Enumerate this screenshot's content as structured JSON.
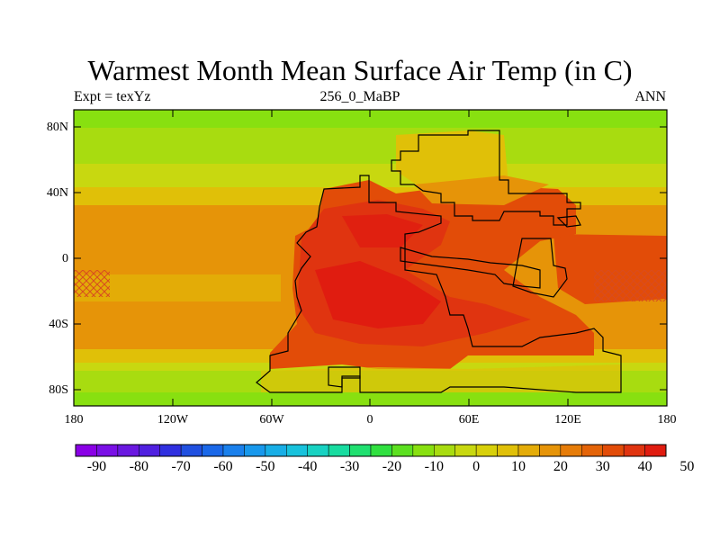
{
  "title": "Warmest Month Mean Surface Air Temp (in C)",
  "subtitle_left": "Expt = texYz",
  "subtitle_center": "256_0_MaBP",
  "subtitle_right": "ANN",
  "y_tick_labels": [
    "80N",
    "40N",
    "0",
    "40S",
    "80S"
  ],
  "x_tick_labels": [
    "180",
    "120W",
    "60W",
    "0",
    "60E",
    "120E",
    "180"
  ],
  "colorbar": {
    "labels": [
      "-90",
      "-80",
      "-70",
      "-60",
      "-50",
      "-40",
      "-30",
      "-20",
      "-10",
      "0",
      "10",
      "20",
      "30",
      "40",
      "50"
    ],
    "colors": [
      "#8a00e6",
      "#7a10e6",
      "#6a18e0",
      "#5020e0",
      "#3030e0",
      "#2050e0",
      "#1a68e8",
      "#1a80ec",
      "#1898ec",
      "#18aee6",
      "#18c2dc",
      "#18d2c2",
      "#18dca0",
      "#20e070",
      "#30e040",
      "#5ce020",
      "#88e010",
      "#a8dc10",
      "#c8d810",
      "#d8d00a",
      "#e0c008",
      "#e4ac08",
      "#e69408",
      "#e67c08",
      "#e46408",
      "#e24c08",
      "#e03410",
      "#e01c10"
    ]
  },
  "colors": {
    "tropics": "#e69408",
    "subtropics": "#e0c008",
    "midlat": "#c8d810",
    "highlat": "#a8dc10",
    "polar": "#88e010",
    "land_hot": "#e24c08",
    "land_very_hot": "#e03410",
    "land_extreme": "#e01c10",
    "outline": "#000000"
  }
}
